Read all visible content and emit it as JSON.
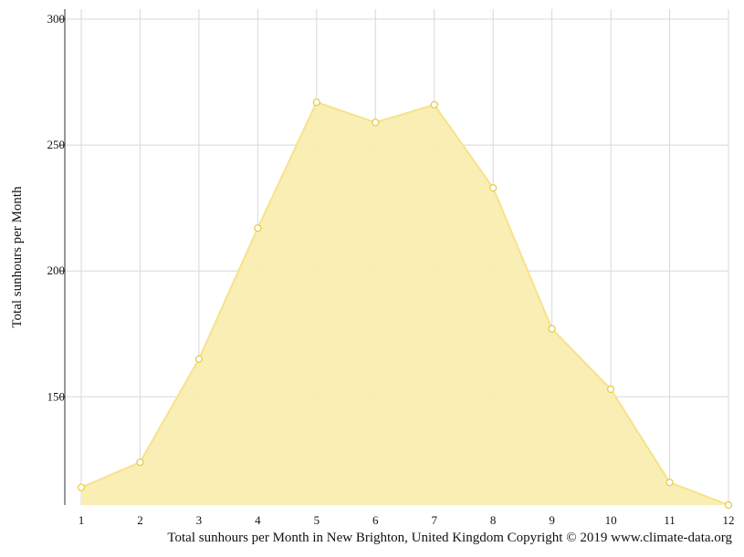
{
  "chart_data": {
    "type": "area",
    "x": [
      1,
      2,
      3,
      4,
      5,
      6,
      7,
      8,
      9,
      10,
      11,
      12
    ],
    "x_tick_labels": [
      "1",
      "2",
      "3",
      "4",
      "5",
      "6",
      "7",
      "8",
      "9",
      "10",
      "11",
      "12"
    ],
    "series": [
      {
        "values": [
          114,
          124,
          165,
          217,
          267,
          259,
          266,
          233,
          177,
          153,
          116,
          107
        ]
      }
    ],
    "ylabel": "Total sunhours per Month",
    "ylim": [
      107,
      304
    ],
    "y_ticks": [
      150,
      200,
      250,
      300
    ],
    "grid": true,
    "caption": "Total sunhours per Month in New Brighton, United Kingdom Copyright © 2019 www.climate-data.org",
    "colors": {
      "fill": "#f9eeb0",
      "line": "#f7e28a",
      "marker_edge": "#e8c93e",
      "grid": "#d8d8d8"
    }
  }
}
